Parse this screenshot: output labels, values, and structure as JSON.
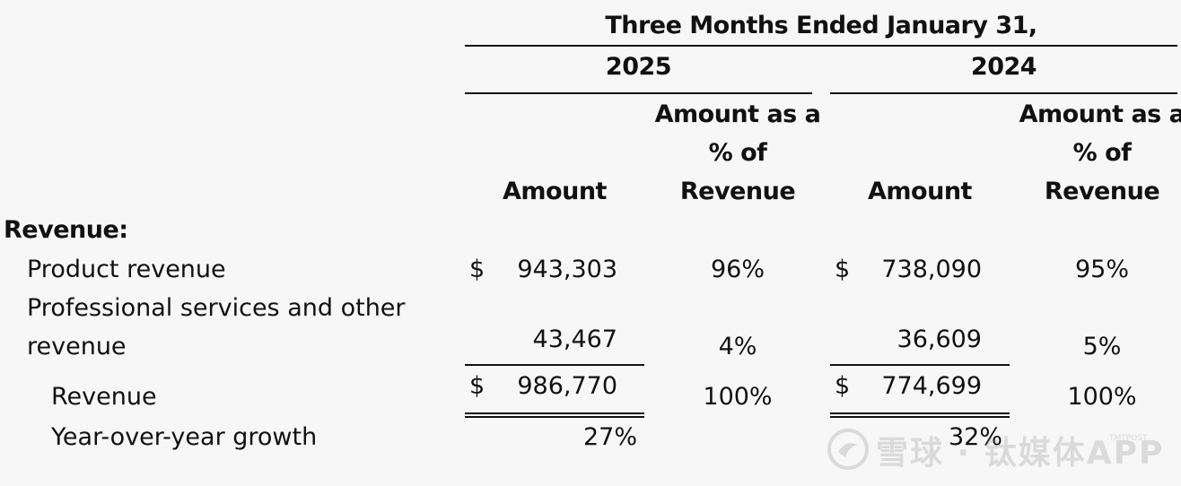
{
  "header": {
    "period": "Three Months Ended January 31,",
    "years": [
      "2025",
      "2024"
    ],
    "amount_label": "Amount",
    "pct_label_line1": "Amount as a",
    "pct_label_line2": "% of",
    "pct_label_line3": "Revenue"
  },
  "section_label": "Revenue:",
  "rows": {
    "product": {
      "label": "Product revenue",
      "currency_2025": "$",
      "amount_2025": "943,303",
      "pct_2025": "96%",
      "currency_2024": "$",
      "amount_2024": "738,090",
      "pct_2024": "95%"
    },
    "services": {
      "label_line1": "Professional services and other",
      "label_line2": "revenue",
      "amount_2025": "43,467",
      "pct_2025": "4%",
      "amount_2024": "36,609",
      "pct_2024": "5%"
    },
    "total": {
      "label": "Revenue",
      "currency_2025": "$",
      "amount_2025": "986,770",
      "pct_2025": "100%",
      "currency_2024": "$",
      "amount_2024": "774,699",
      "pct_2024": "100%"
    },
    "growth": {
      "label": "Year-over-year growth",
      "value_2025": "27%",
      "value_2024": "32%"
    }
  },
  "watermark": {
    "icon": "snowball-logo-icon",
    "text": "雪球 · 钛媒体APP",
    "small": "TMTPOST"
  }
}
